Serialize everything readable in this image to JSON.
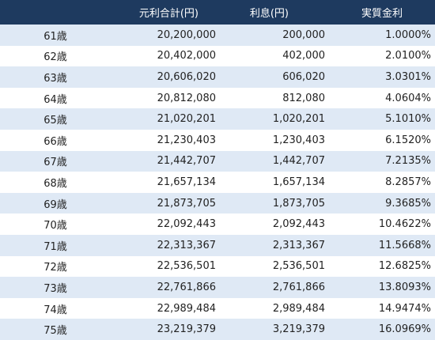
{
  "headers": {
    "age": "",
    "total": "元利合計(円)",
    "interest": "利息(円)",
    "rate": "実質金利"
  },
  "rows": [
    {
      "age": "61歳",
      "total": "20,200,000",
      "interest": "200,000",
      "rate": "1.0000%"
    },
    {
      "age": "62歳",
      "total": "20,402,000",
      "interest": "402,000",
      "rate": "2.0100%"
    },
    {
      "age": "63歳",
      "total": "20,606,020",
      "interest": "606,020",
      "rate": "3.0301%"
    },
    {
      "age": "64歳",
      "total": "20,812,080",
      "interest": "812,080",
      "rate": "4.0604%"
    },
    {
      "age": "65歳",
      "total": "21,020,201",
      "interest": "1,020,201",
      "rate": "5.1010%"
    },
    {
      "age": "66歳",
      "total": "21,230,403",
      "interest": "1,230,403",
      "rate": "6.1520%"
    },
    {
      "age": "67歳",
      "total": "21,442,707",
      "interest": "1,442,707",
      "rate": "7.2135%"
    },
    {
      "age": "68歳",
      "total": "21,657,134",
      "interest": "1,657,134",
      "rate": "8.2857%"
    },
    {
      "age": "69歳",
      "total": "21,873,705",
      "interest": "1,873,705",
      "rate": "9.3685%"
    },
    {
      "age": "70歳",
      "total": "22,092,443",
      "interest": "2,092,443",
      "rate": "10.4622%"
    },
    {
      "age": "71歳",
      "total": "22,313,367",
      "interest": "2,313,367",
      "rate": "11.5668%"
    },
    {
      "age": "72歳",
      "total": "22,536,501",
      "interest": "2,536,501",
      "rate": "12.6825%"
    },
    {
      "age": "73歳",
      "total": "22,761,866",
      "interest": "2,761,866",
      "rate": "13.8093%"
    },
    {
      "age": "74歳",
      "total": "22,989,484",
      "interest": "2,989,484",
      "rate": "14.9474%"
    },
    {
      "age": "75歳",
      "total": "23,219,379",
      "interest": "3,219,379",
      "rate": "16.0969%"
    }
  ],
  "colors": {
    "header_bg": "#1e3a5f",
    "header_text": "#ffffff",
    "row_stripe": "#dfe9f5",
    "row_plain": "#ffffff"
  }
}
